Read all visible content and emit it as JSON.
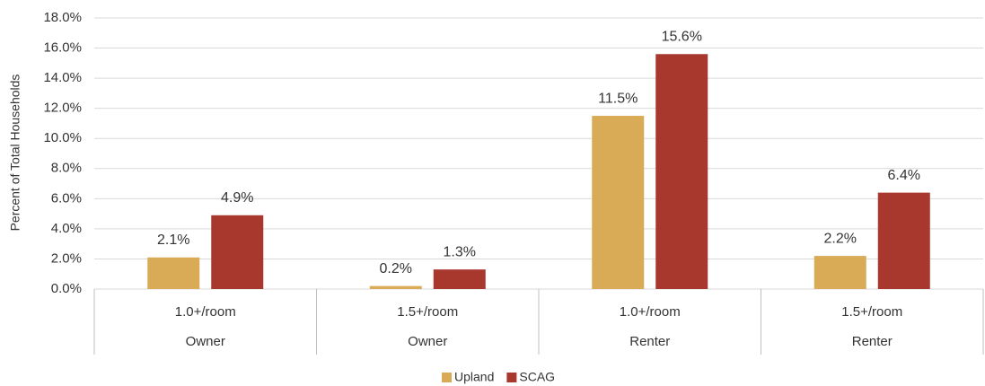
{
  "chart_data": {
    "type": "bar",
    "y_axis_label": "Percent of Total Households",
    "categories": [
      "1.0+/room",
      "1.5+/room",
      "1.0+/room",
      "1.5+/room"
    ],
    "category_groups": [
      "Owner",
      "Owner",
      "Renter",
      "Renter"
    ],
    "series": [
      {
        "name": "Upland",
        "color": "#d9ab56",
        "values": [
          2.1,
          0.2,
          11.5,
          2.2
        ],
        "value_labels": [
          "2.1%",
          "0.2%",
          "11.5%",
          "2.2%"
        ]
      },
      {
        "name": "SCAG",
        "color": "#a8372e",
        "values": [
          4.9,
          1.3,
          15.6,
          6.4
        ],
        "value_labels": [
          "4.9%",
          "1.3%",
          "15.6%",
          "6.4%"
        ]
      }
    ],
    "ylim": [
      0,
      18
    ],
    "yticks": [
      {
        "value": 0,
        "label": "0.0%"
      },
      {
        "value": 2,
        "label": "2.0%"
      },
      {
        "value": 4,
        "label": "4.0%"
      },
      {
        "value": 6,
        "label": "6.0%"
      },
      {
        "value": 8,
        "label": "8.0%"
      },
      {
        "value": 10,
        "label": "10.0%"
      },
      {
        "value": 12,
        "label": "12.0%"
      },
      {
        "value": 14,
        "label": "14.0%"
      },
      {
        "value": 16,
        "label": "16.0%"
      },
      {
        "value": 18,
        "label": "18.0%"
      }
    ],
    "grid": true,
    "legend": "bottom"
  }
}
